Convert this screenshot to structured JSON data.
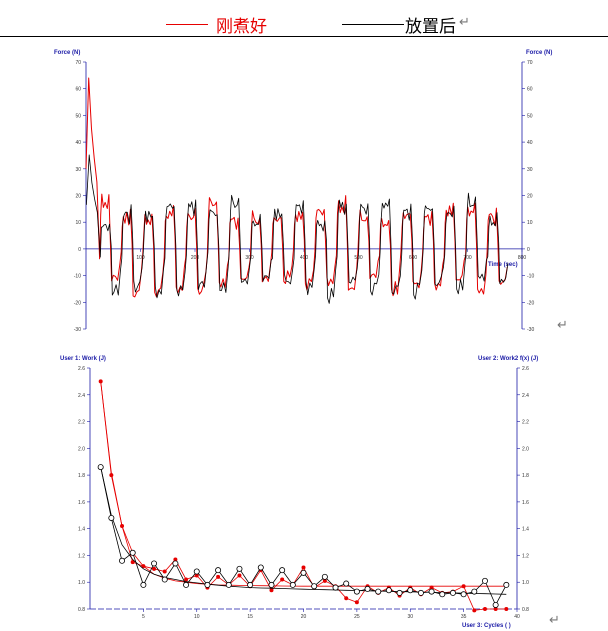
{
  "legend": {
    "fresh_label": "刚煮好",
    "stored_label": "放置后",
    "fresh_color": "#e60000",
    "stored_color": "#000000",
    "return_mark": "↵"
  },
  "chart_data": [
    {
      "type": "line",
      "ylabel_left": "Force (N)",
      "ylabel_right": "Force (N)",
      "xlabel": "Time (sec)",
      "xlim": [
        0,
        800
      ],
      "ylim": [
        -30,
        70
      ],
      "xticks": [
        100,
        200,
        300,
        400,
        500,
        600,
        700,
        800
      ],
      "yticks": [
        -30,
        -20,
        -10,
        0,
        10,
        20,
        30,
        40,
        50,
        60,
        70
      ],
      "ytick_labels_right": [
        "-30",
        "-20",
        "-10",
        "0",
        "10",
        "20",
        "30",
        "40",
        "50",
        "60",
        "70"
      ],
      "first_peak": {
        "x": [
          0,
          5,
          10,
          15,
          20
        ],
        "y": [
          30,
          64,
          45,
          34,
          25
        ]
      },
      "cycles": {
        "count": 19,
        "start": 25,
        "period": 39.5,
        "peak_mean": 15,
        "trough_mean": -15
      },
      "series": [
        {
          "name": "刚煮好",
          "color": "#e60000"
        },
        {
          "name": "放置后",
          "color": "#000000"
        }
      ]
    },
    {
      "type": "line",
      "ylabel_left": "User 1: Work (J)",
      "ylabel_right": "User 2: Work2 f(x) (J)",
      "xlabel": "User 3: Cycles ( )",
      "xlim": [
        0,
        40
      ],
      "ylim": [
        0.8,
        2.6
      ],
      "xticks": [
        5,
        10,
        15,
        20,
        25,
        30,
        35,
        40
      ],
      "yticks": [
        0.8,
        1.0,
        1.2,
        1.4,
        1.6,
        1.8,
        2.0,
        2.2,
        2.4,
        2.6
      ],
      "ytick_labels": [
        "0.8",
        "1.0",
        "1.2",
        "1.4",
        "1.6",
        "1.8",
        "2.0",
        "2.2",
        "2.4",
        "2.6"
      ],
      "series": [
        {
          "name": "刚煮好",
          "color": "#e60000",
          "x": [
            1,
            2,
            3,
            4,
            5,
            6,
            7,
            8,
            9,
            10,
            11,
            12,
            13,
            14,
            15,
            16,
            17,
            18,
            19,
            20,
            21,
            22,
            23,
            24,
            25,
            26,
            27,
            28,
            29,
            30,
            31,
            32,
            33,
            34,
            35,
            36,
            37,
            38,
            39
          ],
          "y": [
            2.5,
            1.8,
            1.42,
            1.15,
            1.12,
            1.1,
            1.08,
            1.17,
            1.02,
            1.05,
            0.96,
            1.04,
            0.98,
            1.05,
            0.97,
            1.09,
            0.94,
            1.02,
            0.98,
            1.11,
            0.96,
            1.01,
            0.97,
            0.88,
            0.85,
            0.97,
            0.92,
            0.96,
            0.9,
            0.96,
            0.91,
            0.96,
            0.92,
            0.93,
            0.97,
            0.79,
            0.8,
            0.8,
            0.8
          ],
          "fit": [
            2.5,
            1.82,
            1.42,
            1.22,
            1.12,
            1.06,
            1.03,
            1.01,
            1.0,
            0.99,
            0.985,
            0.98,
            0.978,
            0.976,
            0.975,
            0.974,
            0.973,
            0.972,
            0.971,
            0.97,
            0.97,
            0.97,
            0.97,
            0.97,
            0.97,
            0.97,
            0.97,
            0.97,
            0.97,
            0.97,
            0.97,
            0.97,
            0.97,
            0.97,
            0.97,
            0.97,
            0.97,
            0.97,
            0.97
          ]
        },
        {
          "name": "放置后",
          "color": "#000000",
          "x": [
            1,
            2,
            3,
            4,
            5,
            6,
            7,
            8,
            9,
            10,
            11,
            12,
            13,
            14,
            15,
            16,
            17,
            18,
            19,
            20,
            21,
            22,
            23,
            24,
            25,
            26,
            27,
            28,
            29,
            30,
            31,
            32,
            33,
            34,
            35,
            36,
            37,
            38,
            39
          ],
          "y": [
            1.86,
            1.48,
            1.16,
            1.22,
            0.98,
            1.14,
            1.02,
            1.14,
            0.98,
            1.08,
            0.98,
            1.09,
            0.98,
            1.1,
            0.98,
            1.11,
            0.98,
            1.09,
            0.98,
            1.07,
            0.97,
            1.04,
            0.96,
            0.99,
            0.93,
            0.95,
            0.93,
            0.94,
            0.92,
            0.94,
            0.92,
            0.93,
            0.91,
            0.92,
            0.91,
            0.93,
            1.01,
            0.83,
            0.98
          ],
          "fit": [
            1.86,
            1.5,
            1.28,
            1.17,
            1.1,
            1.06,
            1.035,
            1.02,
            1.005,
            0.995,
            0.985,
            0.978,
            0.97,
            0.965,
            0.96,
            0.957,
            0.955,
            0.953,
            0.95,
            0.948,
            0.946,
            0.944,
            0.942,
            0.94,
            0.938,
            0.936,
            0.934,
            0.932,
            0.93,
            0.928,
            0.926,
            0.924,
            0.922,
            0.92,
            0.918,
            0.916,
            0.914,
            0.912,
            0.91
          ]
        }
      ]
    }
  ]
}
